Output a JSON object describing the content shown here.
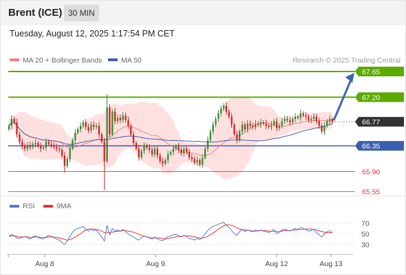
{
  "header": {
    "title": "Brent (ICE)",
    "timeframe": "30 MIN"
  },
  "datetime": "Tuesday, August 12, 2025 1:17:54 PM CET",
  "legend": {
    "ma20": "MA 20 + Bollinger Bands",
    "ma50": "MA 50",
    "research": "Research © 2025 Trading Central"
  },
  "rsi_legend": {
    "rsi": "RSI",
    "ma9": "9MA"
  },
  "colors": {
    "green": "#5aaa00",
    "blue": "#3a5fb0",
    "red": "#e63232",
    "band": "#ffd6d6",
    "bull": "#2e8b2e",
    "bear": "#cc2222",
    "dark": "#333333"
  },
  "chart_data": {
    "type": "candlestick",
    "y_range": [
      65.45,
      67.95
    ],
    "x_labels": [
      "Aug 8",
      "Aug 9",
      "Aug 12",
      "Aug 13"
    ],
    "levels": [
      {
        "value": 67.65,
        "label": "67.65",
        "style": "resistance"
      },
      {
        "value": 67.2,
        "label": "67.20",
        "style": "resistance"
      },
      {
        "value": 66.77,
        "label": "66.77",
        "style": "current"
      },
      {
        "value": 66.35,
        "label": "66.35",
        "style": "pivot"
      },
      {
        "value": 65.9,
        "label": "65.90",
        "style": "support"
      },
      {
        "value": 65.55,
        "label": "65.55",
        "style": "support"
      }
    ],
    "forecast_target": 67.65,
    "closes": [
      66.7,
      66.82,
      66.76,
      66.55,
      66.42,
      66.34,
      66.3,
      66.36,
      66.33,
      66.38,
      66.4,
      66.34,
      66.3,
      66.32,
      66.42,
      66.38,
      66.36,
      66.33,
      66.3,
      66.28,
      66.18,
      66.0,
      66.12,
      66.3,
      66.45,
      66.58,
      66.64,
      66.7,
      66.76,
      66.68,
      66.62,
      66.72,
      66.68,
      66.7,
      66.55,
      66.42,
      66.08,
      67.02,
      66.55,
      66.95,
      66.78,
      66.84,
      66.8,
      66.88,
      66.8,
      66.7,
      66.55,
      66.4,
      66.3,
      66.15,
      66.26,
      66.35,
      66.32,
      66.28,
      66.2,
      66.3,
      66.18,
      66.08,
      66.04,
      66.1,
      66.2,
      66.24,
      66.3,
      66.34,
      66.28,
      66.22,
      66.3,
      66.25,
      66.15,
      66.12,
      66.06,
      66.1,
      66.02,
      66.14,
      66.3,
      66.45,
      66.6,
      66.72,
      66.82,
      66.92,
      67.0,
      67.05,
      66.95,
      66.86,
      66.72,
      66.55,
      66.45,
      66.6,
      66.72,
      66.64,
      66.74,
      66.7,
      66.68,
      66.74,
      66.72,
      66.76,
      66.74,
      66.7,
      66.68,
      66.72,
      66.78,
      66.66,
      66.7,
      66.78,
      66.82,
      66.8,
      66.76,
      66.82,
      66.86,
      66.84,
      66.92,
      66.88,
      66.86,
      66.8,
      66.82,
      66.86,
      66.78,
      66.7,
      66.6,
      66.7,
      66.78,
      66.82,
      66.77
    ],
    "rsi": {
      "range": [
        20,
        80
      ],
      "ticks": [
        70,
        50,
        30
      ],
      "rsi_values": [
        45,
        49,
        46,
        42,
        41,
        43,
        45,
        42,
        40,
        44,
        46,
        43,
        41,
        40,
        44,
        47,
        45,
        42,
        40,
        38,
        33,
        30,
        36,
        45,
        53,
        58,
        60,
        62,
        64,
        58,
        55,
        59,
        56,
        57,
        50,
        44,
        36,
        66,
        48,
        60,
        55,
        57,
        55,
        58,
        54,
        50,
        46,
        44,
        40,
        38,
        43,
        46,
        44,
        42,
        40,
        44,
        40,
        38,
        37,
        41,
        45,
        46,
        48,
        49,
        46,
        44,
        47,
        45,
        41,
        40,
        38,
        41,
        39,
        43,
        50,
        56,
        61,
        64,
        66,
        68,
        70,
        72,
        66,
        62,
        56,
        50,
        47,
        54,
        58,
        54,
        57,
        55,
        54,
        57,
        55,
        57,
        55,
        54,
        52,
        55,
        58,
        50,
        53,
        57,
        59,
        57,
        55,
        58,
        60,
        58,
        62,
        60,
        58,
        55,
        56,
        59,
        52,
        48,
        44,
        50,
        54,
        56,
        52
      ],
      "ma9_values": [
        45,
        46,
        46,
        45,
        44,
        44,
        44,
        44,
        43,
        43,
        44,
        44,
        43,
        43,
        43,
        44,
        44,
        44,
        43,
        42,
        41,
        39,
        38,
        39,
        41,
        44,
        47,
        50,
        54,
        57,
        59,
        59,
        59,
        58,
        57,
        55,
        52,
        53,
        52,
        53,
        54,
        55,
        55,
        56,
        56,
        55,
        54,
        53,
        51,
        49,
        47,
        45,
        44,
        43,
        42,
        42,
        42,
        42,
        41,
        40,
        41,
        42,
        43,
        44,
        45,
        45,
        46,
        46,
        46,
        45,
        44,
        43,
        42,
        42,
        43,
        45,
        48,
        51,
        55,
        59,
        62,
        65,
        67,
        67,
        66,
        64,
        61,
        59,
        58,
        57,
        57,
        56,
        55,
        55,
        56,
        56,
        56,
        56,
        55,
        55,
        55,
        54,
        54,
        55,
        56,
        56,
        56,
        57,
        57,
        58,
        58,
        59,
        59,
        59,
        59,
        58,
        57,
        56,
        54,
        53,
        52,
        52,
        52
      ]
    }
  }
}
